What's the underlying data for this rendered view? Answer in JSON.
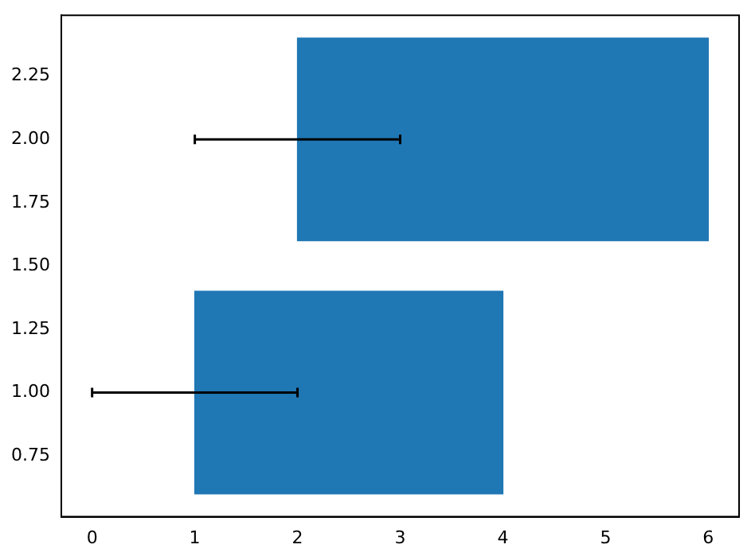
{
  "chart_data": {
    "type": "bar",
    "orientation": "horizontal",
    "x": [
      1,
      2
    ],
    "base": [
      1,
      2
    ],
    "values": [
      3,
      4
    ],
    "errors": [
      [
        0,
        2
      ],
      [
        1,
        3
      ]
    ],
    "color": "#1f77b4",
    "xlim": [
      -0.3,
      6.3
    ],
    "xticks": [
      0,
      1,
      2,
      3,
      4,
      5,
      6
    ],
    "ylim": [
      0.51,
      2.49
    ],
    "yticks": [
      {
        "value": 0.75,
        "label": "0.75"
      },
      {
        "value": 1,
        "label": "1.00"
      },
      {
        "value": 1.25,
        "label": "1.25"
      },
      {
        "value": 1.5,
        "label": "1.50"
      },
      {
        "value": 1.75,
        "label": "1.75"
      },
      {
        "value": 2,
        "label": "2.00"
      },
      {
        "value": 2.25,
        "label": "2.25"
      }
    ],
    "grid": false,
    "legend": false
  }
}
